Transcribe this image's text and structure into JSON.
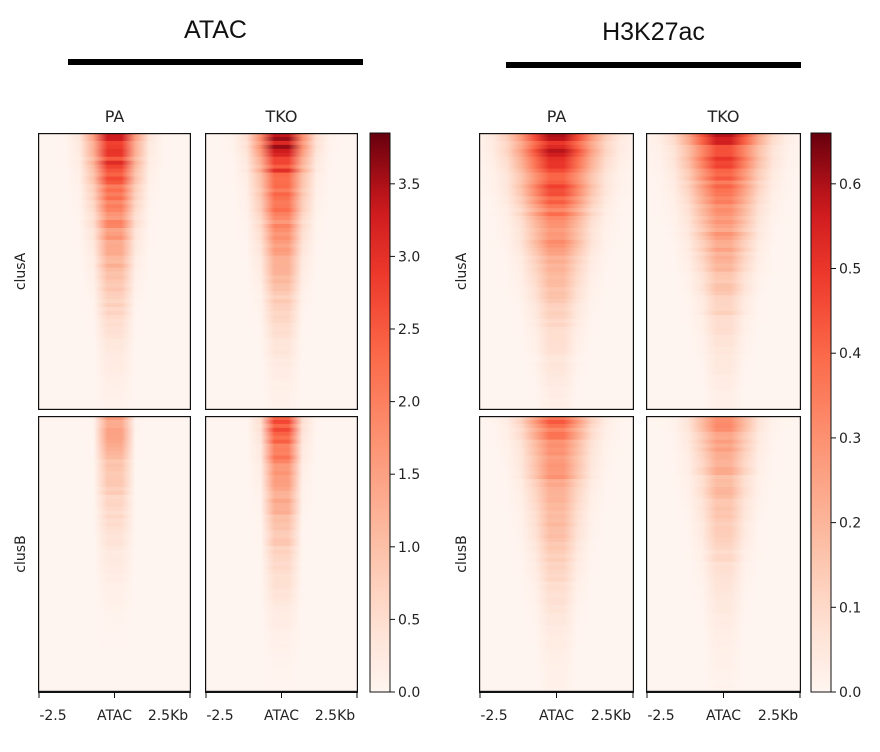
{
  "chart_data": {
    "type": "heatmap",
    "groups": [
      {
        "title": "ATAC",
        "samples": [
          "PA",
          "TKO"
        ],
        "colorbar": {
          "min": 0.0,
          "max": 3.85,
          "ticks": [
            0.0,
            0.5,
            1.0,
            1.5,
            2.0,
            2.5,
            3.0,
            3.5
          ],
          "tick_labels": [
            "0.0",
            "0.5",
            "1.0",
            "1.5",
            "2.0",
            "2.5",
            "3.0",
            "3.5"
          ]
        },
        "signal_profile": {
          "PA": {
            "clusA": {
              "peak": 3.7,
              "width_kb": 0.75
            },
            "clusB": {
              "peak": 2.4,
              "width_kb": 0.35
            }
          },
          "TKO": {
            "clusA": {
              "peak": 3.8,
              "width_kb": 0.8
            },
            "clusB": {
              "peak": 3.3,
              "width_kb": 0.5
            }
          }
        }
      },
      {
        "title": "H3K27ac",
        "samples": [
          "PA",
          "TKO"
        ],
        "colorbar": {
          "min": 0.0,
          "max": 0.66,
          "ticks": [
            0.0,
            0.1,
            0.2,
            0.3,
            0.4,
            0.5,
            0.6
          ],
          "tick_labels": [
            "0.0",
            "0.1",
            "0.2",
            "0.3",
            "0.4",
            "0.5",
            "0.6"
          ]
        },
        "signal_profile": {
          "PA": {
            "clusA": {
              "peak": 0.62,
              "width_kb": 1.3
            },
            "clusB": {
              "peak": 0.42,
              "width_kb": 1.0
            }
          },
          "TKO": {
            "clusA": {
              "peak": 0.55,
              "width_kb": 1.2
            },
            "clusB": {
              "peak": 0.32,
              "width_kb": 0.9
            }
          }
        }
      }
    ],
    "row_clusters": [
      "clusA",
      "clusB"
    ],
    "x_ticks": [
      "-2.5",
      "ATAC",
      "2.5Kb"
    ],
    "x_range_kb": [
      -2.5,
      2.5
    ],
    "colormap": "Reds",
    "colors": {
      "low": "#fff5f0",
      "mid": "#ef6548",
      "high": "#67000d"
    }
  }
}
